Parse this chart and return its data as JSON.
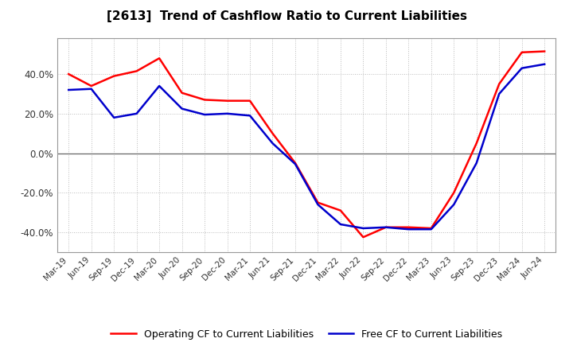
{
  "title": "[2613]  Trend of Cashflow Ratio to Current Liabilities",
  "x_labels": [
    "Mar-19",
    "Jun-19",
    "Sep-19",
    "Dec-19",
    "Mar-20",
    "Jun-20",
    "Sep-20",
    "Dec-20",
    "Mar-21",
    "Jun-21",
    "Sep-21",
    "Dec-21",
    "Mar-22",
    "Jun-22",
    "Sep-22",
    "Dec-22",
    "Mar-23",
    "Jun-23",
    "Sep-23",
    "Dec-23",
    "Mar-24",
    "Jun-24"
  ],
  "operating_cf": [
    40.0,
    34.0,
    39.0,
    41.5,
    48.0,
    30.5,
    27.0,
    26.5,
    26.5,
    10.0,
    -5.0,
    -25.0,
    -29.0,
    -42.5,
    -37.5,
    -37.5,
    -38.0,
    -20.0,
    5.0,
    35.0,
    51.0,
    51.5
  ],
  "free_cf": [
    32.0,
    32.5,
    18.0,
    20.0,
    34.0,
    22.5,
    19.5,
    20.0,
    19.0,
    5.0,
    -5.5,
    -26.0,
    -36.0,
    -38.0,
    -37.5,
    -38.5,
    -38.5,
    -26.0,
    -5.0,
    30.0,
    43.0,
    45.0
  ],
  "operating_cf_color": "#FF0000",
  "free_cf_color": "#0000CC",
  "ylim": [
    -50,
    58
  ],
  "yticks": [
    -40,
    -20,
    0,
    20,
    40
  ],
  "background_color": "#FFFFFF",
  "plot_bg_color": "#FFFFFF",
  "grid_color": "#AAAAAA",
  "legend_operating": "Operating CF to Current Liabilities",
  "legend_free": "Free CF to Current Liabilities",
  "title_fontsize": 11,
  "line_width": 1.8
}
